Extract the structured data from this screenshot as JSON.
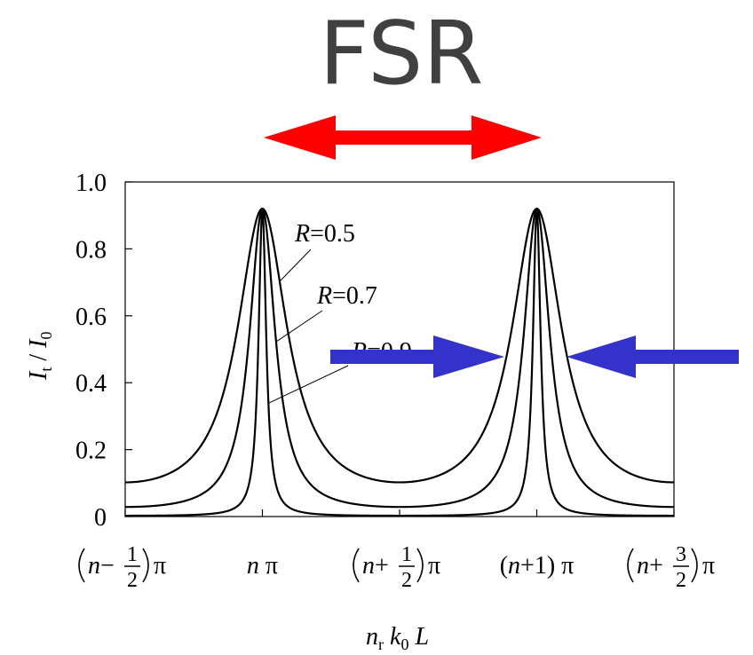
{
  "chart_data": {
    "type": "line",
    "title": "FSR",
    "ylabel": {
      "main": "I",
      "sub": "t",
      "sep": " / ",
      "main2": "I",
      "sub2": "0"
    },
    "xlabel": {
      "p1": "n",
      "s1": "r",
      "p2": " k",
      "s2": "0",
      "p3": " L"
    },
    "ylim": [
      0,
      1.0
    ],
    "xlim_in_pi": [
      -0.5,
      1.5
    ],
    "yticks": [
      "0",
      "0.2",
      "0.4",
      "0.6",
      "0.8",
      "1.0"
    ],
    "xticks": [
      {
        "pre": "n",
        "sign": "−",
        "num": "1",
        "den": "2",
        "post": "π"
      },
      {
        "pre": "n",
        "plain": "n π"
      },
      {
        "pre": "n",
        "sign": "+",
        "num": "1",
        "den": "2",
        "post": "π"
      },
      {
        "plain": "(n+1) π"
      },
      {
        "pre": "n",
        "sign": "+",
        "num": "3",
        "den": "2",
        "post": "π"
      }
    ],
    "peak_transmission": 0.92,
    "series": [
      {
        "name": "R=0.5",
        "label_prefix": "R",
        "label_value": "=0.5",
        "R": 0.5
      },
      {
        "name": "R=0.7",
        "label_prefix": "R",
        "label_value": "=0.7",
        "R": 0.7
      },
      {
        "name": "R=0.9",
        "label_prefix": "R",
        "label_value": "=0.9",
        "R": 0.9
      }
    ],
    "annotations": {
      "fsr_arrow_color": "#ff0000",
      "fwhm_arrow_color": "#3333cc"
    }
  }
}
